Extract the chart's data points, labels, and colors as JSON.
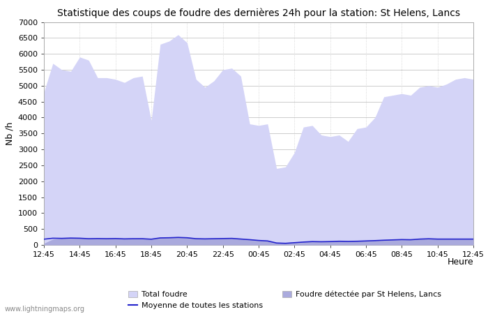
{
  "title": "Statistique des coups de foudre des dernières 24h pour la station: St Helens, Lancs",
  "ylabel": "Nb /h",
  "xlabel": "Heure",
  "xtick_labels": [
    "12:45",
    "14:45",
    "16:45",
    "18:45",
    "20:45",
    "22:45",
    "00:45",
    "02:45",
    "04:45",
    "06:45",
    "08:45",
    "10:45",
    "12:45"
  ],
  "ylim": [
    0,
    7000
  ],
  "yticks": [
    0,
    500,
    1000,
    1500,
    2000,
    2500,
    3000,
    3500,
    4000,
    4500,
    5000,
    5500,
    6000,
    6500,
    7000
  ],
  "bg_color": "#ffffff",
  "plot_bg_color": "#ffffff",
  "grid_color": "#cccccc",
  "fill_total_color": "#d4d4f7",
  "fill_station_color": "#aaaadd",
  "line_mean_color": "#2222cc",
  "watermark": "www.lightningmaps.org",
  "legend_total": "Total foudre",
  "legend_mean": "Moyenne de toutes les stations",
  "legend_station": "Foudre détectée par St Helens, Lancs",
  "total_foudre": [
    4800,
    5700,
    5500,
    5450,
    5900,
    5800,
    5250,
    5250,
    5200,
    5100,
    5250,
    5300,
    3900,
    6300,
    6400,
    6600,
    6350,
    5200,
    4950,
    5150,
    5500,
    5550,
    5300,
    3800,
    3750,
    3800,
    2400,
    2450,
    2900,
    3700,
    3750,
    3450,
    3400,
    3450,
    3250,
    3650,
    3700,
    4000,
    4650,
    4700,
    4750,
    4700,
    4950,
    5000,
    4950,
    5050,
    5200,
    5250,
    5200
  ],
  "station_foudre": [
    50,
    180,
    210,
    220,
    215,
    200,
    205,
    215,
    215,
    200,
    205,
    215,
    195,
    235,
    245,
    255,
    245,
    215,
    205,
    210,
    215,
    225,
    195,
    175,
    155,
    135,
    65,
    55,
    75,
    95,
    115,
    105,
    115,
    125,
    115,
    125,
    135,
    145,
    155,
    165,
    175,
    175,
    195,
    205,
    195,
    195,
    195,
    195,
    195
  ],
  "mean_line": [
    180,
    210,
    205,
    215,
    210,
    195,
    200,
    195,
    200,
    190,
    195,
    195,
    180,
    220,
    225,
    235,
    225,
    195,
    190,
    195,
    200,
    205,
    185,
    165,
    140,
    125,
    60,
    50,
    70,
    90,
    105,
    100,
    105,
    115,
    110,
    115,
    125,
    135,
    148,
    158,
    168,
    163,
    183,
    193,
    183,
    183,
    183,
    183,
    183
  ]
}
